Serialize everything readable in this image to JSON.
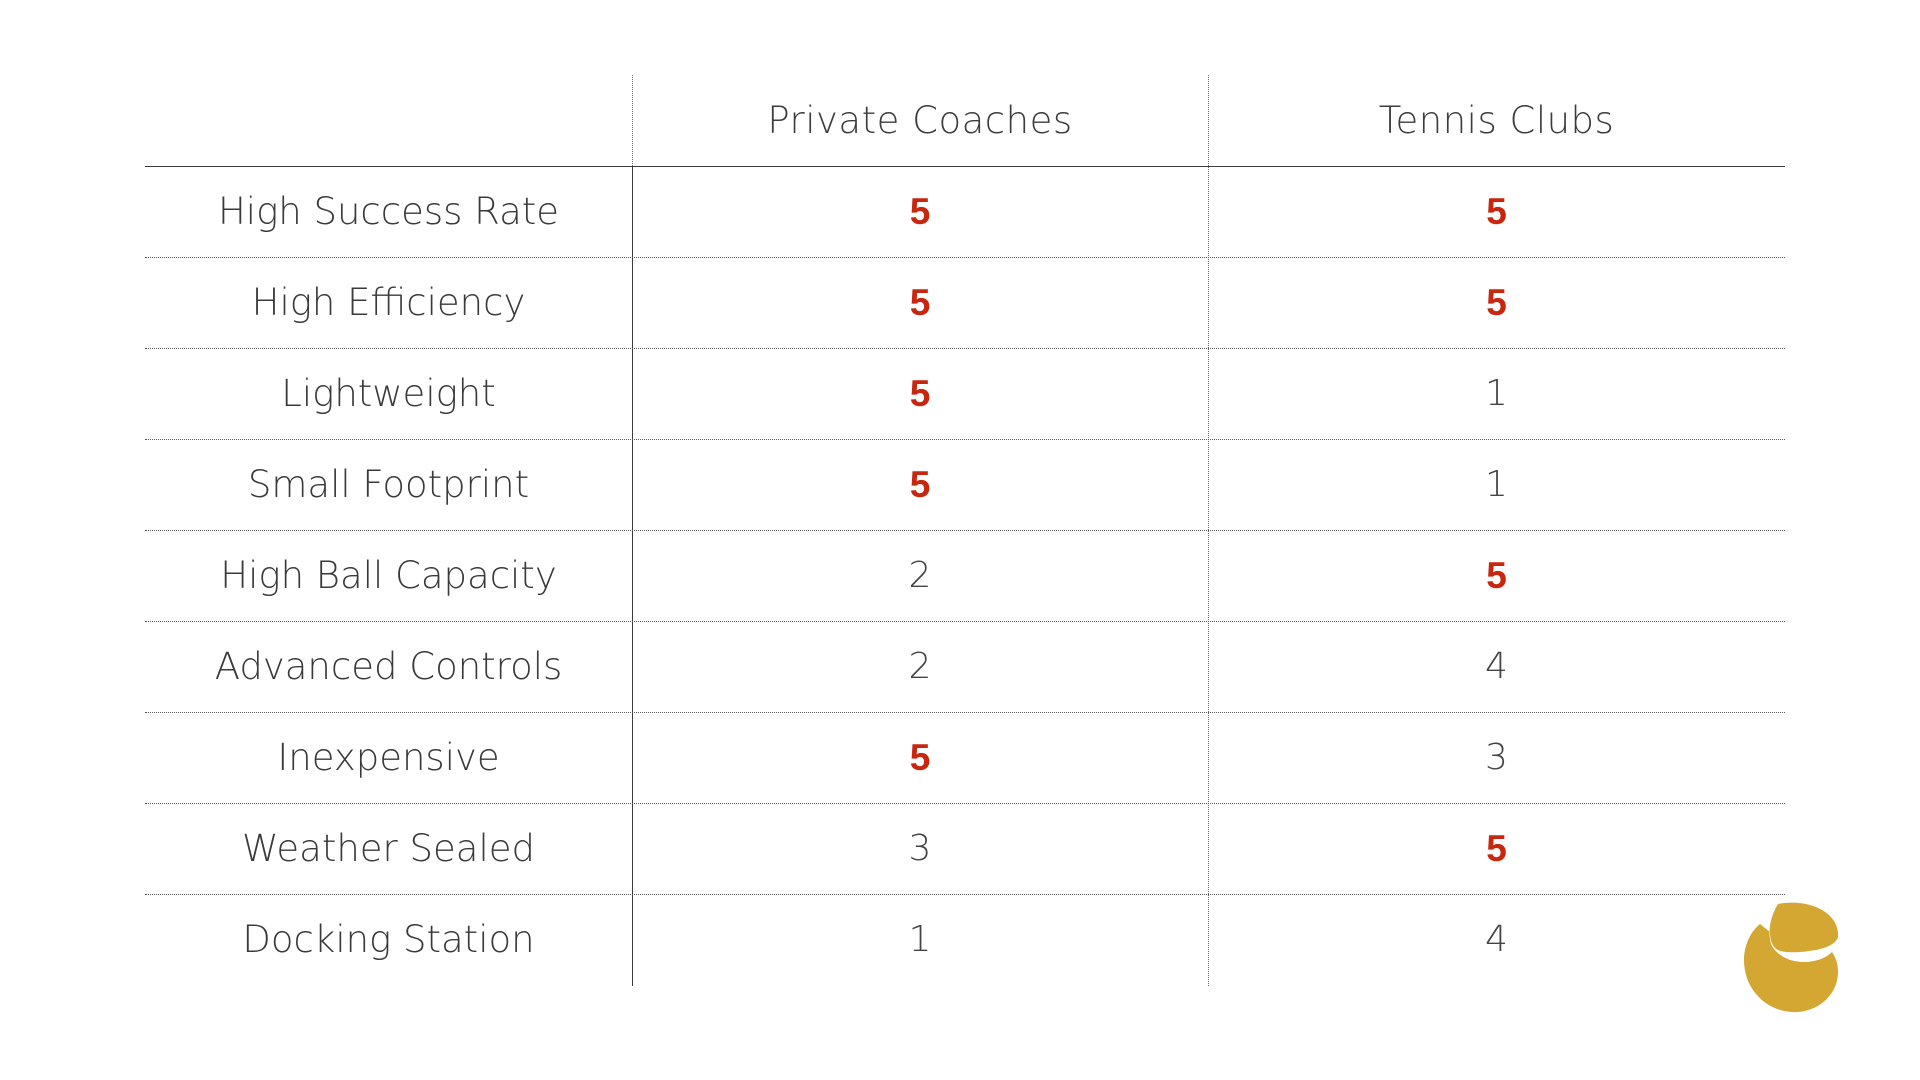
{
  "table": {
    "columns": [
      "Private Coaches",
      "Tennis Clubs"
    ],
    "rows": [
      {
        "label": "High Success Rate",
        "values": [
          "5",
          "5"
        ],
        "highlight": [
          true,
          true
        ]
      },
      {
        "label": "High Efficiency",
        "values": [
          "5",
          "5"
        ],
        "highlight": [
          true,
          true
        ]
      },
      {
        "label": "Lightweight",
        "values": [
          "5",
          "1"
        ],
        "highlight": [
          true,
          false
        ]
      },
      {
        "label": "Small Footprint",
        "values": [
          "5",
          "1"
        ],
        "highlight": [
          true,
          false
        ]
      },
      {
        "label": "High Ball Capacity",
        "values": [
          "2",
          "5"
        ],
        "highlight": [
          false,
          true
        ]
      },
      {
        "label": "Advanced Controls",
        "values": [
          "2",
          "4"
        ],
        "highlight": [
          false,
          false
        ]
      },
      {
        "label": "Inexpensive",
        "values": [
          "5",
          "3"
        ],
        "highlight": [
          true,
          false
        ]
      },
      {
        "label": "Weather Sealed",
        "values": [
          "3",
          "5"
        ],
        "highlight": [
          false,
          true
        ]
      },
      {
        "label": "Docking Station",
        "values": [
          "1",
          "4"
        ],
        "highlight": [
          false,
          false
        ]
      }
    ]
  },
  "colors": {
    "highlight": "#c8260e",
    "text": "#3a3a3a",
    "logo": "#d4a632",
    "background": "#ffffff"
  },
  "logo": {
    "icon": "brand-logo-icon"
  }
}
